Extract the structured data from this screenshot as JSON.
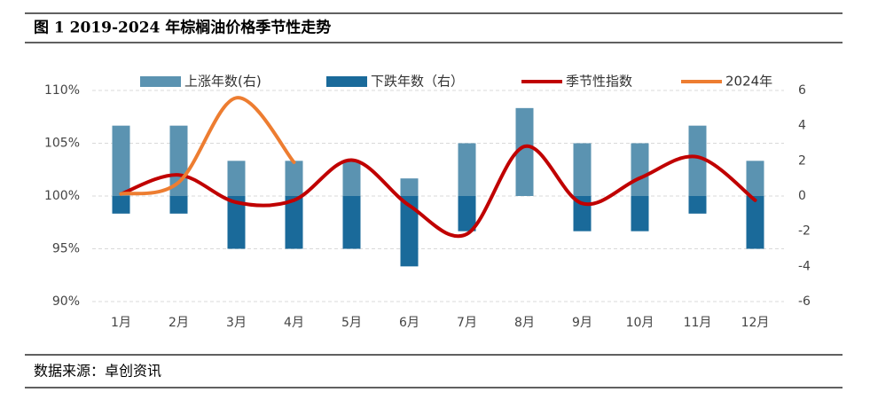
{
  "chart_data": {
    "type": "bar_line",
    "title": "图 1 2019-2024 年棕榈油价格季节性走势",
    "source": "数据来源：卓创资讯",
    "categories": [
      "1月",
      "2月",
      "3月",
      "4月",
      "5月",
      "6月",
      "7月",
      "8月",
      "9月",
      "10月",
      "11月",
      "12月"
    ],
    "series": [
      {
        "name": "上涨年数(右)",
        "kind": "bar",
        "axis": "y2",
        "color": "#5b93b1",
        "values": [
          4,
          4,
          2,
          2,
          2,
          1,
          3,
          5,
          3,
          3,
          4,
          2
        ]
      },
      {
        "name": "下跌年数（右）",
        "kind": "bar",
        "axis": "y2",
        "color": "#1a6a9a",
        "values": [
          -1,
          -1,
          -3,
          -3,
          -3,
          -4,
          -2,
          0,
          -2,
          -2,
          -1,
          -3
        ]
      },
      {
        "name": "季节性指数",
        "kind": "line",
        "color": "#c00000",
        "values": [
          100.2,
          102.0,
          99.4,
          99.6,
          103.4,
          99.1,
          96.4,
          104.7,
          99.3,
          101.7,
          103.7,
          99.6
        ]
      },
      {
        "name": "2024年",
        "kind": "line",
        "color": "#ed7d31",
        "values": [
          100.2,
          101.3,
          109.3,
          103.2,
          null,
          null,
          null,
          null,
          null,
          null,
          null,
          null
        ]
      }
    ],
    "ylim": [
      90,
      110
    ],
    "yticks": [
      {
        "value": 90,
        "label": "90%"
      },
      {
        "value": 95,
        "label": "95%"
      },
      {
        "value": 100,
        "label": "100%"
      },
      {
        "value": 105,
        "label": "105%"
      },
      {
        "value": 110,
        "label": "110%"
      }
    ],
    "y2lim": [
      -6,
      6
    ],
    "y2ticks": [
      -6,
      -4,
      -2,
      0,
      2,
      4,
      6
    ],
    "grid": true
  }
}
